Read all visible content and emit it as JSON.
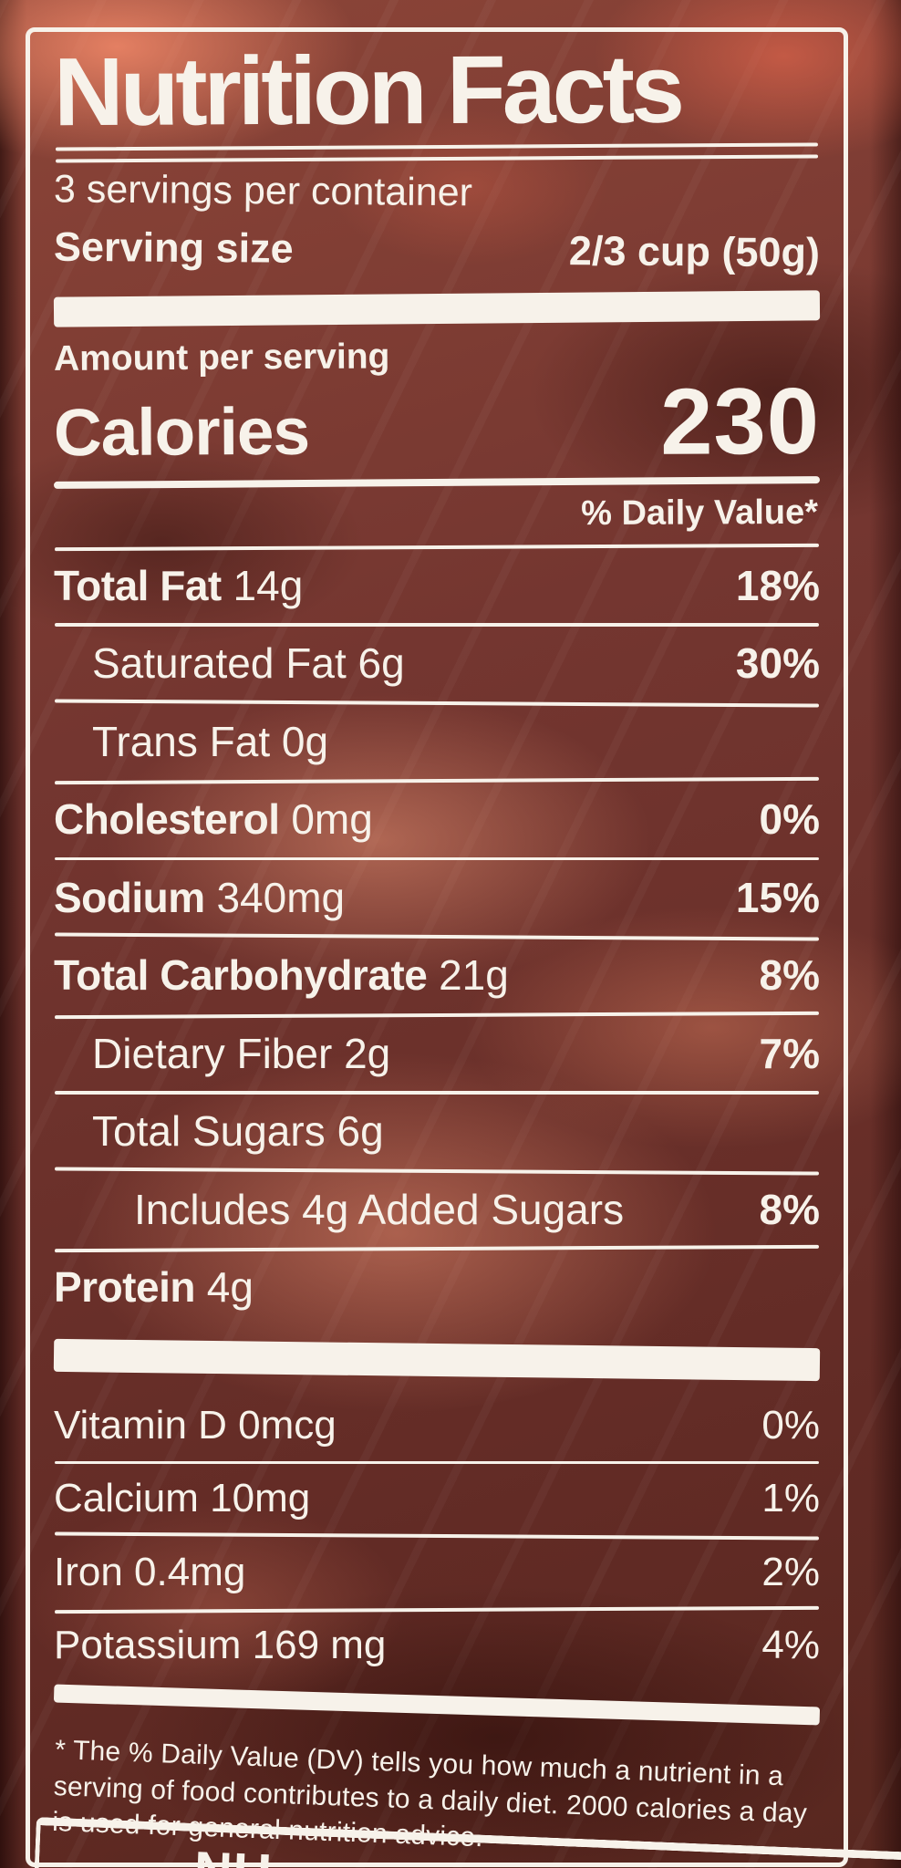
{
  "label": {
    "title": "Nutrition Facts",
    "servings_per_container": "3 servings per container",
    "serving_size_label": "Serving size",
    "serving_size_value": "2/3 cup (50g)",
    "amount_per_serving": "Amount per serving",
    "calories_label": "Calories",
    "calories_value": "230",
    "daily_value_header": "% Daily Value*",
    "rows": [
      {
        "name": "Total Fat",
        "amount": "14g",
        "dv": "18%",
        "bold": true,
        "indent": 0
      },
      {
        "name": "Saturated Fat",
        "amount": "6g",
        "dv": "30%",
        "bold": false,
        "indent": 1
      },
      {
        "name": "Trans Fat",
        "amount": "0g",
        "dv": "",
        "bold": false,
        "indent": 1
      },
      {
        "name": "Cholesterol",
        "amount": "0mg",
        "dv": "0%",
        "bold": true,
        "indent": 0
      },
      {
        "name": "Sodium",
        "amount": "340mg",
        "dv": "15%",
        "bold": true,
        "indent": 0
      },
      {
        "name": "Total Carbohydrate",
        "amount": "21g",
        "dv": "8%",
        "bold": true,
        "indent": 0
      },
      {
        "name": "Dietary Fiber",
        "amount": "2g",
        "dv": "7%",
        "bold": false,
        "indent": 1
      },
      {
        "name": "Total Sugars",
        "amount": "6g",
        "dv": "",
        "bold": false,
        "indent": 1
      },
      {
        "name": "Includes 4g Added Sugars",
        "amount": "",
        "dv": "8%",
        "bold": false,
        "indent": 2
      },
      {
        "name": "Protein",
        "amount": "4g",
        "dv": "",
        "bold": true,
        "indent": 0
      }
    ],
    "micros": [
      {
        "name": "Vitamin D",
        "amount": "0mcg",
        "dv": "0%"
      },
      {
        "name": "Calcium",
        "amount": "10mg",
        "dv": "1%"
      },
      {
        "name": "Iron",
        "amount": "0.4mg",
        "dv": "2%"
      },
      {
        "name": "Potassium",
        "amount": "169 mg",
        "dv": "4%"
      }
    ],
    "footnote": "* The % Daily Value (DV) tells you how much a nutrient in a serving of food contributes to a daily diet. 2000 calories a day is used for general nutrition advice.",
    "bottom_partial_text": "NU"
  },
  "colors": {
    "ink": "#f7f2ea",
    "bag_base": "#743630",
    "bag_highlight": "#ef9478",
    "bag_shadow": "#50231e"
  }
}
